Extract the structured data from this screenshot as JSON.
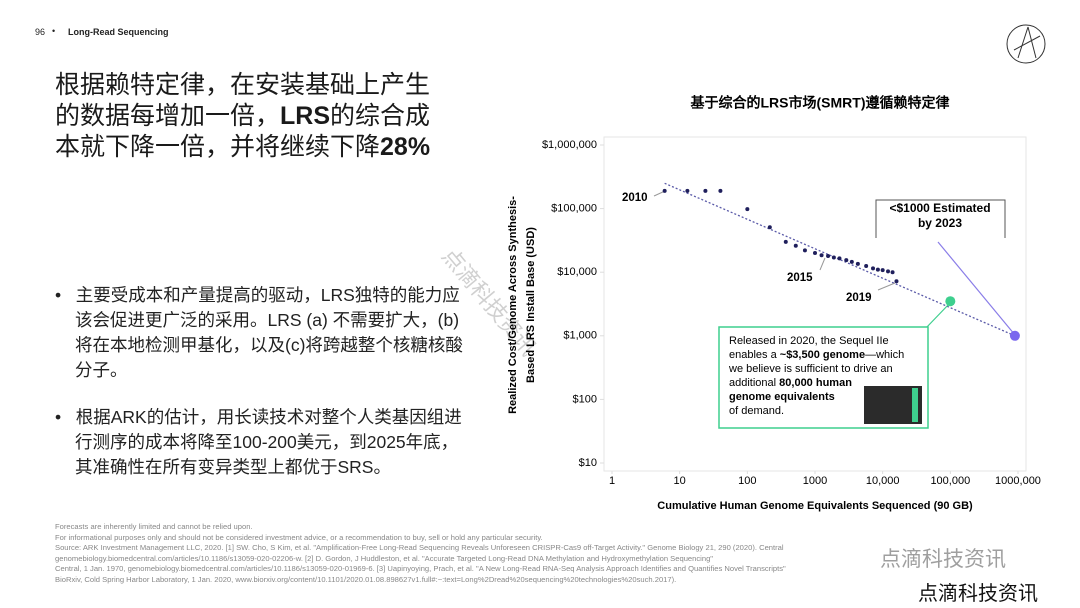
{
  "header": {
    "page": "96",
    "section": "Long-Read Sequencing"
  },
  "headline": [
    [
      {
        "t": "根据赖特定律，在安装基础上产生"
      }
    ],
    [
      {
        "t": "的数据每增加一倍，"
      },
      {
        "t": "LRS",
        "b": true
      },
      {
        "t": "的综合成"
      }
    ],
    [
      {
        "t": "本就下降一倍，并将继续下降"
      },
      {
        "t": "28%",
        "b": true
      }
    ]
  ],
  "bullets": [
    "主要受成本和产量提高的驱动，LRS独特的能力应该会促进更广泛的采用。LRS (a) 不需要扩大，(b)将在本地检测甲基化，以及(c)将跨越整个核糖核酸分子。",
    "根据ARK的估计，用长读技术对整个人类基因组进行测序的成本将降至100-200美元，到2025年底，其准确性在所有变异类型上都优于SRS。"
  ],
  "footnotes": [
    "Forecasts are inherently limited and cannot be relied upon.",
    "For informational purposes only and should not be considered investment advice, or a recommendation to buy, sell or hold any particular security.",
    "Source: ARK Investment Management LLC, 2020. [1] SW. Cho, S Kim, et al. \"Amplification-Free Long-Read Sequencing Reveals Unforeseen CRISPR-Cas9 off-Target Activity.\" Genome Biology 21, 290 (2020). Central",
    "genomebiology.biomedcentral.com/articles/10.1186/s13059-020-02206-w. [2] D. Gordon, J Huddleston, et al. \"Accurate Targeted Long-Read DNA Methylation and Hydroxymethylation Sequencing\"",
    "Central, 1 Jan. 1970, genomebiology.biomedcentral.com/articles/10.1186/s13059-020-01969-6. [3] Uapinyoying, Prach, et al. \"A New Long-Read RNA-Seq Analysis Approach Identifies and Quantifies Novel Transcripts\"",
    "BioRxiv, Cold Spring Harbor Laboratory, 1 Jan. 2020, www.biorxiv.org/content/10.1101/2020.01.08.898627v1.full#:~:text=Long%2Dread%20sequencing%20technologies%20such.2017)."
  ],
  "watermark": [
    "点滴科技资讯",
    "点滴科技资讯",
    "点滴科技资讯"
  ],
  "chart_data": {
    "type": "scatter",
    "title": "基于综合的LRS市场(SMRT)遵循赖特定律",
    "y_label": [
      "Realized Cost/Genome Across Synthesis-",
      "Based LRS Install Base (USD)"
    ],
    "x_label": "Cumulative Human Genome Equivalents Sequenced (90 GB)",
    "log_x": true,
    "log_y": true,
    "xlim": [
      1,
      1000000
    ],
    "ylim": [
      10,
      1000000
    ],
    "xticks": [
      1,
      10,
      100,
      1000,
      {
        "value": 10000,
        "label": "10,000"
      },
      {
        "value": 100000,
        "label": "100,000"
      },
      {
        "value": 1000000,
        "label": "1000,000"
      }
    ],
    "yticks": [
      {
        "value": 10,
        "label": "$10"
      },
      {
        "value": 100,
        "label": "$100"
      },
      {
        "value": 1000,
        "label": "$1,000"
      },
      {
        "value": 10000,
        "label": "$10,000"
      },
      {
        "value": 100000,
        "label": "$100,000"
      },
      {
        "value": 1000000,
        "label": "$1,000,000"
      }
    ],
    "series": [
      {
        "color": "#1f1f5c",
        "x": [
          6,
          13,
          24,
          40,
          100,
          215,
          370,
          520,
          710,
          1000,
          1250,
          1560,
          1900,
          2300,
          2900,
          3500,
          4300,
          5700,
          7200,
          8500,
          10000,
          12000,
          14000,
          16000
        ],
        "values": [
          190000,
          190000,
          190000,
          190000,
          98000,
          51000,
          30000,
          26000,
          22000,
          20000,
          18500,
          18000,
          17000,
          16500,
          15500,
          14500,
          13500,
          12500,
          11500,
          11000,
          10800,
          10300,
          10000,
          7200
        ]
      },
      {
        "color": "#3ecf8e",
        "x": [
          100000
        ],
        "values": [
          3500
        ]
      },
      {
        "color": "#7b68ee",
        "x": [
          900000
        ],
        "values": [
          1000
        ]
      }
    ],
    "trend": {
      "color": "#5a5aa8",
      "x": [
        6,
        900000
      ],
      "values": [
        250000,
        1000
      ]
    },
    "annotations": [
      "2010",
      "2015",
      "2019",
      "<$1000 Estimated",
      "by 2023"
    ],
    "callout": [
      [
        {
          "t": "Released in 2020, the Sequel IIe"
        }
      ],
      [
        {
          "t": "enables a "
        },
        {
          "t": "~$3,500 genome",
          "b": true
        },
        {
          "t": "—which"
        }
      ],
      [
        {
          "t": "we believe is sufficient to drive an"
        }
      ],
      [
        {
          "t": "additional "
        },
        {
          "t": "80,000 human",
          "b": true
        }
      ],
      [
        {
          "t": "genome equivalents",
          "b": true
        }
      ],
      [
        {
          "t": "of demand."
        }
      ]
    ]
  }
}
